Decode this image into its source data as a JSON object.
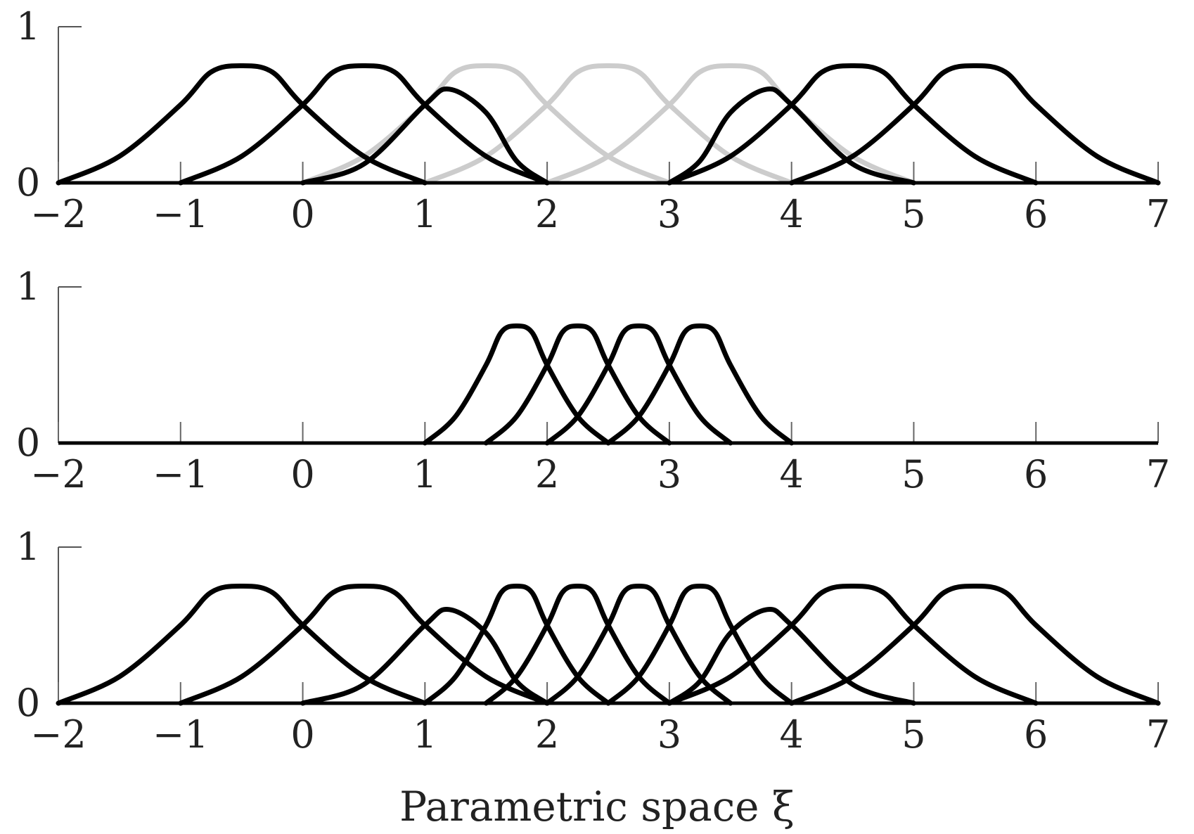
{
  "chart_data": {
    "type": "line",
    "xlabel": "Parametric space ξ",
    "x_ticks": [
      "−2",
      "−1",
      "0",
      "1",
      "2",
      "3",
      "4",
      "5",
      "6",
      "7"
    ],
    "x_tick_values": [
      -2,
      -1,
      0,
      1,
      2,
      3,
      4,
      5,
      6,
      7
    ],
    "xlim": [
      -2,
      7
    ],
    "y_ticks": [
      "0",
      "1"
    ],
    "y_tick_values": [
      0,
      1
    ],
    "ylim": [
      0,
      1
    ],
    "grid": false,
    "legend": "none",
    "colors": {
      "black": "#000000",
      "gray": "#cccccc"
    },
    "panels": [
      {
        "series": [
          {
            "color": "black",
            "x": [
              -2,
              -1.5,
              -1,
              -0.75,
              -0.5,
              -0.25,
              0,
              0.5,
              1
            ],
            "y": [
              0,
              0.17,
              0.5,
              0.71,
              0.75,
              0.71,
              0.5,
              0.17,
              0
            ]
          },
          {
            "color": "black",
            "x": [
              -1,
              -0.5,
              0,
              0.25,
              0.5,
              0.75,
              1,
              1.5,
              2
            ],
            "y": [
              0,
              0.17,
              0.5,
              0.71,
              0.75,
              0.71,
              0.5,
              0.17,
              0
            ]
          },
          {
            "color": "black",
            "x": [
              0,
              0.5,
              1,
              1.2,
              1.5,
              1.75,
              2
            ],
            "y": [
              0,
              0.12,
              0.5,
              0.6,
              0.45,
              0.14,
              0
            ]
          },
          {
            "color": "gray",
            "x": [
              0,
              0.5,
              1,
              1.25,
              1.5,
              1.75,
              2,
              2.5,
              3
            ],
            "y": [
              0,
              0.17,
              0.5,
              0.71,
              0.75,
              0.71,
              0.5,
              0.17,
              0
            ]
          },
          {
            "color": "gray",
            "x": [
              1,
              1.5,
              2,
              2.25,
              2.5,
              2.75,
              3,
              3.5,
              4
            ],
            "y": [
              0,
              0.17,
              0.5,
              0.71,
              0.75,
              0.71,
              0.5,
              0.17,
              0
            ]
          },
          {
            "color": "gray",
            "x": [
              2,
              2.5,
              3,
              3.25,
              3.5,
              3.75,
              4,
              4.5,
              5
            ],
            "y": [
              0,
              0.17,
              0.5,
              0.71,
              0.75,
              0.71,
              0.5,
              0.17,
              0
            ]
          },
          {
            "color": "black",
            "x": [
              3,
              3.25,
              3.5,
              3.8,
              4,
              4.5,
              5
            ],
            "y": [
              0,
              0.14,
              0.45,
              0.6,
              0.5,
              0.12,
              0
            ]
          },
          {
            "color": "black",
            "x": [
              3,
              3.5,
              4,
              4.25,
              4.5,
              4.75,
              5,
              5.5,
              6
            ],
            "y": [
              0,
              0.17,
              0.5,
              0.71,
              0.75,
              0.71,
              0.5,
              0.17,
              0
            ]
          },
          {
            "color": "black",
            "x": [
              4,
              4.5,
              5,
              5.25,
              5.5,
              5.75,
              6,
              6.5,
              7
            ],
            "y": [
              0,
              0.17,
              0.5,
              0.71,
              0.75,
              0.71,
              0.5,
              0.17,
              0
            ]
          }
        ]
      },
      {
        "series": [
          {
            "color": "black",
            "x": [
              1,
              1.25,
              1.5,
              1.625,
              1.75,
              1.875,
              2,
              2.25,
              2.5
            ],
            "y": [
              0,
              0.17,
              0.5,
              0.71,
              0.75,
              0.71,
              0.5,
              0.17,
              0
            ]
          },
          {
            "color": "black",
            "x": [
              1.5,
              1.75,
              2,
              2.125,
              2.25,
              2.375,
              2.5,
              2.75,
              3
            ],
            "y": [
              0,
              0.17,
              0.5,
              0.71,
              0.75,
              0.71,
              0.5,
              0.17,
              0
            ]
          },
          {
            "color": "black",
            "x": [
              2,
              2.25,
              2.5,
              2.625,
              2.75,
              2.875,
              3,
              3.25,
              3.5
            ],
            "y": [
              0,
              0.17,
              0.5,
              0.71,
              0.75,
              0.71,
              0.5,
              0.17,
              0
            ]
          },
          {
            "color": "black",
            "x": [
              2.5,
              2.75,
              3,
              3.125,
              3.25,
              3.375,
              3.5,
              3.75,
              4
            ],
            "y": [
              0,
              0.17,
              0.5,
              0.71,
              0.75,
              0.71,
              0.5,
              0.17,
              0
            ]
          }
        ]
      },
      {
        "series": [
          {
            "color": "black",
            "x": [
              -2,
              -1.5,
              -1,
              -0.75,
              -0.5,
              -0.25,
              0,
              0.5,
              1
            ],
            "y": [
              0,
              0.17,
              0.5,
              0.71,
              0.75,
              0.71,
              0.5,
              0.17,
              0
            ]
          },
          {
            "color": "black",
            "x": [
              -1,
              -0.5,
              0,
              0.25,
              0.5,
              0.75,
              1,
              1.5,
              2
            ],
            "y": [
              0,
              0.17,
              0.5,
              0.71,
              0.75,
              0.71,
              0.5,
              0.17,
              0
            ]
          },
          {
            "color": "black",
            "x": [
              0,
              0.5,
              1,
              1.2,
              1.5,
              1.75,
              2
            ],
            "y": [
              0,
              0.12,
              0.5,
              0.6,
              0.45,
              0.14,
              0
            ]
          },
          {
            "color": "black",
            "x": [
              1,
              1.25,
              1.5,
              1.625,
              1.75,
              1.875,
              2,
              2.25,
              2.5
            ],
            "y": [
              0,
              0.17,
              0.5,
              0.71,
              0.75,
              0.71,
              0.5,
              0.17,
              0
            ]
          },
          {
            "color": "black",
            "x": [
              1.5,
              1.75,
              2,
              2.125,
              2.25,
              2.375,
              2.5,
              2.75,
              3
            ],
            "y": [
              0,
              0.17,
              0.5,
              0.71,
              0.75,
              0.71,
              0.5,
              0.17,
              0
            ]
          },
          {
            "color": "black",
            "x": [
              2,
              2.25,
              2.5,
              2.625,
              2.75,
              2.875,
              3,
              3.25,
              3.5
            ],
            "y": [
              0,
              0.17,
              0.5,
              0.71,
              0.75,
              0.71,
              0.5,
              0.17,
              0
            ]
          },
          {
            "color": "black",
            "x": [
              2.5,
              2.75,
              3,
              3.125,
              3.25,
              3.375,
              3.5,
              3.75,
              4
            ],
            "y": [
              0,
              0.17,
              0.5,
              0.71,
              0.75,
              0.71,
              0.5,
              0.17,
              0
            ]
          },
          {
            "color": "black",
            "x": [
              3,
              3.25,
              3.5,
              3.8,
              4,
              4.5,
              5
            ],
            "y": [
              0,
              0.14,
              0.45,
              0.6,
              0.5,
              0.12,
              0
            ]
          },
          {
            "color": "black",
            "x": [
              3,
              3.5,
              4,
              4.25,
              4.5,
              4.75,
              5,
              5.5,
              6
            ],
            "y": [
              0,
              0.17,
              0.5,
              0.71,
              0.75,
              0.71,
              0.5,
              0.17,
              0
            ]
          },
          {
            "color": "black",
            "x": [
              4,
              4.5,
              5,
              5.25,
              5.5,
              5.75,
              6,
              6.5,
              7
            ],
            "y": [
              0,
              0.17,
              0.5,
              0.71,
              0.75,
              0.71,
              0.5,
              0.17,
              0
            ]
          }
        ]
      }
    ]
  }
}
